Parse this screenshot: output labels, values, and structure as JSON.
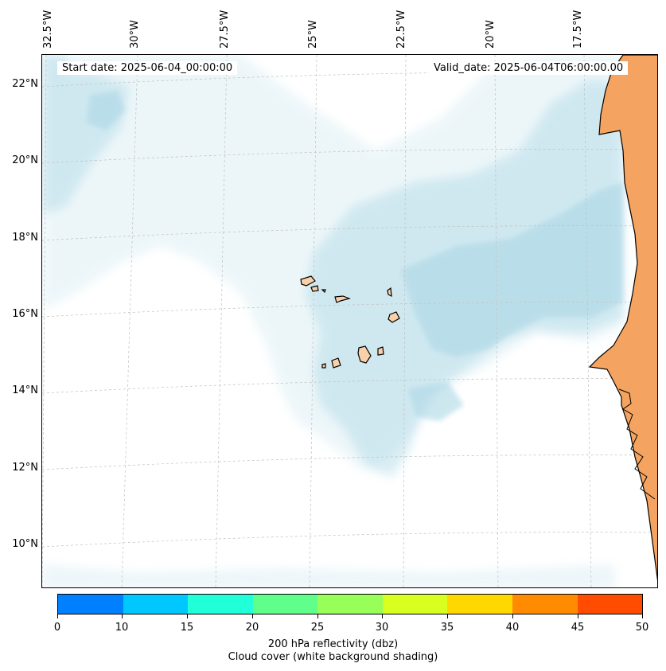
{
  "map": {
    "start_date": "Start date: 2025-06-04_00:00:00",
    "valid_date": "Valid_date: 2025-06-04T06:00:00.00",
    "lon_labels": [
      "32.5°W",
      "30°W",
      "27.5°W",
      "25°W",
      "22.5°W",
      "20°W",
      "17.5°W"
    ],
    "lat_labels": [
      "22°N",
      "20°N",
      "18°N",
      "16°N",
      "14°N",
      "12°N",
      "10°N"
    ],
    "land_color": "#f4a460",
    "island_color": "#f9d0a8",
    "cloud_color": "#add8e6"
  },
  "colorbar": {
    "ticks": [
      "0",
      "10",
      "15",
      "20",
      "25",
      "30",
      "35",
      "40",
      "45",
      "50"
    ],
    "colors": [
      "#0080ff",
      "#00c8ff",
      "#20ffd8",
      "#60ff8c",
      "#98ff58",
      "#d8ff20",
      "#ffd800",
      "#ff8c00",
      "#ff4c00"
    ],
    "label": "200 hPa reflectivity (dbz)",
    "sublabel": "Cloud cover (white background shading)"
  }
}
